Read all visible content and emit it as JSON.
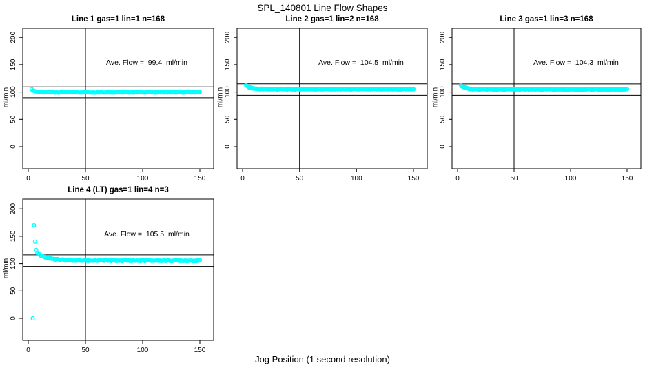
{
  "page": {
    "title": "SPL_140801  Line Flow Shapes",
    "xlabel": "Jog Position (1 second resolution)",
    "colors": {
      "points": "#00ffff",
      "lines": "#000000",
      "background": "#ffffff",
      "text": "#000000"
    }
  },
  "chart_data": [
    {
      "type": "scatter",
      "title": "Line 1 gas=1 lin=1 n=168",
      "annotation": "Ave. Flow =  99.4  ml/min",
      "ave_flow_ml_min": 99.4,
      "ylabel": "ml/min",
      "xticks": [
        0,
        50,
        100,
        150
      ],
      "yticks": [
        0,
        50,
        100,
        150,
        200
      ],
      "xlim": [
        -5,
        162
      ],
      "ylim": [
        -40,
        217
      ],
      "x": {
        "start": 3,
        "end": 150
      },
      "band_points": 168,
      "y_profile": {
        "initial": 104.5,
        "steady": 99.7,
        "decay_tau": 3,
        "noise": 0.8
      },
      "outliers": [],
      "ref_lines_y": [
        109.3,
        89.5
      ],
      "vline_x": 50,
      "point_color": "#00ffff",
      "grid": false
    },
    {
      "type": "scatter",
      "title": "Line 2 gas=1 lin=2 n=168",
      "annotation": "Ave. Flow =  104.5  ml/min",
      "ave_flow_ml_min": 104.5,
      "ylabel": "ml/min",
      "xticks": [
        0,
        50,
        100,
        150
      ],
      "yticks": [
        0,
        50,
        100,
        150,
        200
      ],
      "xlim": [
        -5,
        162
      ],
      "ylim": [
        -40,
        217
      ],
      "x": {
        "start": 3,
        "end": 150
      },
      "band_points": 168,
      "y_profile": {
        "initial": 112,
        "steady": 105.2,
        "decay_tau": 4,
        "noise": 0.7
      },
      "outliers": [],
      "ref_lines_y": [
        115.0,
        94.0
      ],
      "vline_x": 50,
      "point_color": "#00ffff",
      "grid": false
    },
    {
      "type": "scatter",
      "title": "Line 3 gas=1 lin=3 n=168",
      "annotation": "Ave. Flow =  104.3  ml/min",
      "ave_flow_ml_min": 104.3,
      "ylabel": "ml/min",
      "xticks": [
        0,
        50,
        100,
        150
      ],
      "yticks": [
        0,
        50,
        100,
        150,
        200
      ],
      "xlim": [
        -5,
        162
      ],
      "ylim": [
        -40,
        217
      ],
      "x": {
        "start": 3,
        "end": 150
      },
      "band_points": 168,
      "y_profile": {
        "initial": 112,
        "steady": 104.8,
        "decay_tau": 4,
        "noise": 0.7
      },
      "outliers": [],
      "ref_lines_y": [
        114.7,
        93.9
      ],
      "vline_x": 50,
      "point_color": "#00ffff",
      "grid": false
    },
    {
      "type": "scatter",
      "title": "Line 4 (LT) gas=1 lin=4 n=3",
      "annotation": "Ave. Flow =  105.5  ml/min",
      "ave_flow_ml_min": 105.5,
      "ylabel": "ml/min",
      "xticks": [
        0,
        50,
        100,
        150
      ],
      "yticks": [
        0,
        50,
        100,
        150,
        200
      ],
      "xlim": [
        -5,
        162
      ],
      "ylim": [
        -40,
        217
      ],
      "x": {
        "start": 8,
        "end": 150
      },
      "band_points": 160,
      "y_profile": {
        "initial": 119,
        "steady": 105.5,
        "decay_tau": 9,
        "noise": 1.1
      },
      "outliers": [
        [
          4,
          0
        ],
        [
          5,
          170
        ],
        [
          6,
          140
        ],
        [
          7,
          125
        ]
      ],
      "ref_lines_y": [
        116.0,
        95.0
      ],
      "vline_x": 50,
      "point_color": "#00ffff",
      "grid": false
    }
  ]
}
